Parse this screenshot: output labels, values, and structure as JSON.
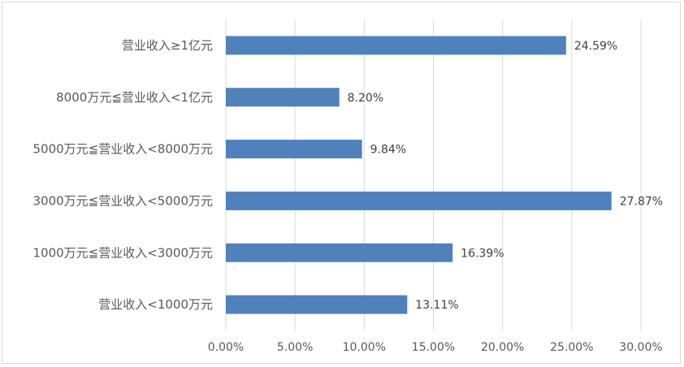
{
  "chart_data": {
    "type": "bar",
    "orientation": "horizontal",
    "title": "",
    "xlabel": "",
    "ylabel": "",
    "categories": [
      "营业收入≥1亿元",
      "8000万元≦营业收入<1亿元",
      "5000万元≦营业收入<8000万元",
      "3000万元≦营业收入<5000万元",
      "1000万元≦营业收入<3000万元",
      "营业收入<1000万元"
    ],
    "values": [
      24.59,
      8.2,
      9.84,
      27.87,
      16.39,
      13.11
    ],
    "data_labels": [
      "24.59%",
      "8.20%",
      "9.84%",
      "27.87%",
      "16.39%",
      "13.11%"
    ],
    "xlim": [
      0,
      30
    ],
    "x_ticks": [
      "0.00%",
      "5.00%",
      "10.00%",
      "15.00%",
      "20.00%",
      "25.00%",
      "30.00%"
    ],
    "grid": "vertical",
    "legend": "none",
    "bar_color": "#4f81bd",
    "grid_color": "#d9d9d9"
  }
}
